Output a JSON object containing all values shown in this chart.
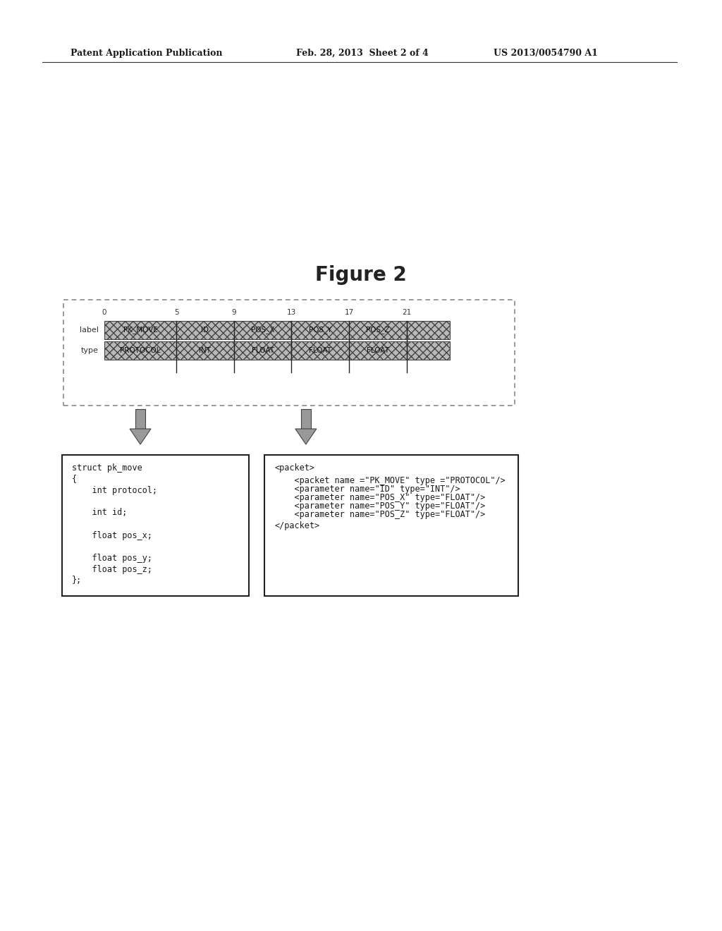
{
  "title": "Figure 2",
  "header_left": "Patent Application Publication",
  "header_mid": "Feb. 28, 2013  Sheet 2 of 4",
  "header_right": "US 2013/0054790 A1",
  "bg_color": "#ffffff",
  "tick_numbers": [
    "0",
    "5",
    "9",
    "13",
    "17",
    "21"
  ],
  "label_row": [
    "PK_MOVE",
    "ID",
    "POS_X",
    "POS_Y",
    "POS_Z"
  ],
  "type_row": [
    "PROTOCOL",
    "INT",
    "FLOAT",
    "FLOAT",
    "FLOAT"
  ],
  "left_box_lines": [
    "struct pk_move",
    "{",
    "    int protocol;",
    "",
    "    int id;",
    "",
    "    float pos_x;",
    "",
    "    float pos_y;",
    "    float pos_z;",
    "};"
  ],
  "right_box_lines": [
    "<packet>",
    "    <packet name =\"PK_MOVE\" type =\"PROTOCOL\"/>",
    "    <parameter name=\"ID\" type=\"INT\"/>",
    "    <parameter name=\"POS_X\" type=\"FLOAT\"/>",
    "    <parameter name=\"POS_Y\" type=\"FLOAT\"/>",
    "    <parameter name=\"POS_Z\" type=\"FLOAT\"/>",
    "</packet>"
  ]
}
